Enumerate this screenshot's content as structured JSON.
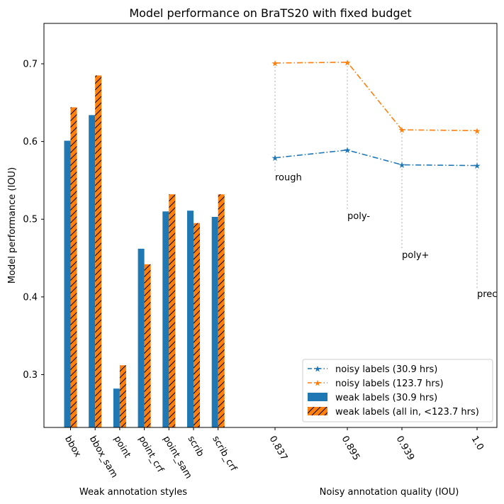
{
  "chart_data": {
    "type": "bar+line",
    "title": "Model performance on BraTS20 with fixed budget",
    "ylabel": "Model performance (IOU)",
    "ylim": [
      0.232,
      0.752
    ],
    "yticks": [
      "0.3",
      "0.4",
      "0.5",
      "0.6",
      "0.7"
    ],
    "ytick_values": [
      0.3,
      0.4,
      0.5,
      0.6,
      0.7
    ],
    "colors": {
      "blue": "#1f77b4",
      "orange": "#ff7f0e",
      "guide": "#c8c8c8"
    },
    "bars": {
      "xlabel": "Weak annotation styles",
      "categories": [
        "bbox",
        "bbox_sam",
        "point",
        "point_crf",
        "point_sam",
        "scrib",
        "scrib_crf"
      ],
      "series": [
        {
          "name": "weak labels (30.9 hrs)",
          "values": [
            0.601,
            0.634,
            0.282,
            0.462,
            0.51,
            0.511,
            0.503
          ]
        },
        {
          "name": "weak labels (all in, <123.7 hrs)",
          "values": [
            0.644,
            0.685,
            0.312,
            0.442,
            0.532,
            0.495,
            0.532
          ],
          "hatch": "/"
        }
      ]
    },
    "lines": {
      "xlabel": "Noisy annotation quality (IOU)",
      "x": [
        0.837,
        0.895,
        0.939,
        1.0
      ],
      "xtick_labels": [
        "0.837",
        "0.895",
        "0.939",
        "1.0"
      ],
      "series": [
        {
          "name": "noisy labels (30.9 hrs)",
          "values": [
            0.579,
            0.589,
            0.57,
            0.569
          ]
        },
        {
          "name": "noisy labels (123.7 hrs)",
          "values": [
            0.701,
            0.702,
            0.615,
            0.614
          ]
        }
      ],
      "annotations": [
        {
          "text": "rough",
          "x": 0.837,
          "y": 0.55
        },
        {
          "text": "poly-",
          "x": 0.895,
          "y": 0.5
        },
        {
          "text": "poly+",
          "x": 0.939,
          "y": 0.45
        },
        {
          "text": "prec",
          "x": 1.0,
          "y": 0.4
        }
      ]
    },
    "legend": {
      "position": "lower-right",
      "entries": [
        "noisy labels (30.9 hrs)",
        "noisy labels (123.7 hrs)",
        "weak labels (30.9 hrs)",
        "weak labels (all in, <123.7 hrs)"
      ]
    }
  }
}
